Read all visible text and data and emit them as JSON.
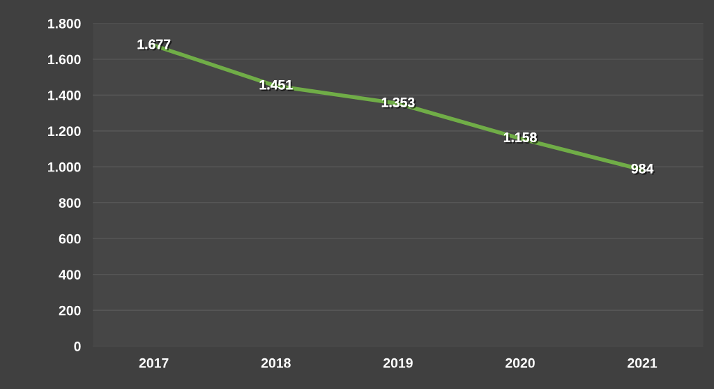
{
  "chart_data": {
    "type": "line",
    "categories": [
      "2017",
      "2018",
      "2019",
      "2020",
      "2021"
    ],
    "series": [
      {
        "color": "#70ad47",
        "values": [
          1677,
          1451,
          1353,
          1158,
          984
        ],
        "value_labels": [
          "1.677",
          "1.451",
          "1.353",
          "1.158",
          "984"
        ]
      }
    ],
    "ylim": [
      0,
      1800
    ],
    "yticks": [
      {
        "value": 0,
        "label": "0"
      },
      {
        "value": 200,
        "label": "200"
      },
      {
        "value": 400,
        "label": "400"
      },
      {
        "value": 600,
        "label": "600"
      },
      {
        "value": 800,
        "label": "800"
      },
      {
        "value": 1000,
        "label": "1.000"
      },
      {
        "value": 1200,
        "label": "1.200"
      },
      {
        "value": 1400,
        "label": "1.400"
      },
      {
        "value": 1600,
        "label": "1.600"
      },
      {
        "value": 1800,
        "label": "1.800"
      }
    ],
    "grid": "y",
    "marker": "none",
    "line_style": "solid",
    "legend": false
  }
}
